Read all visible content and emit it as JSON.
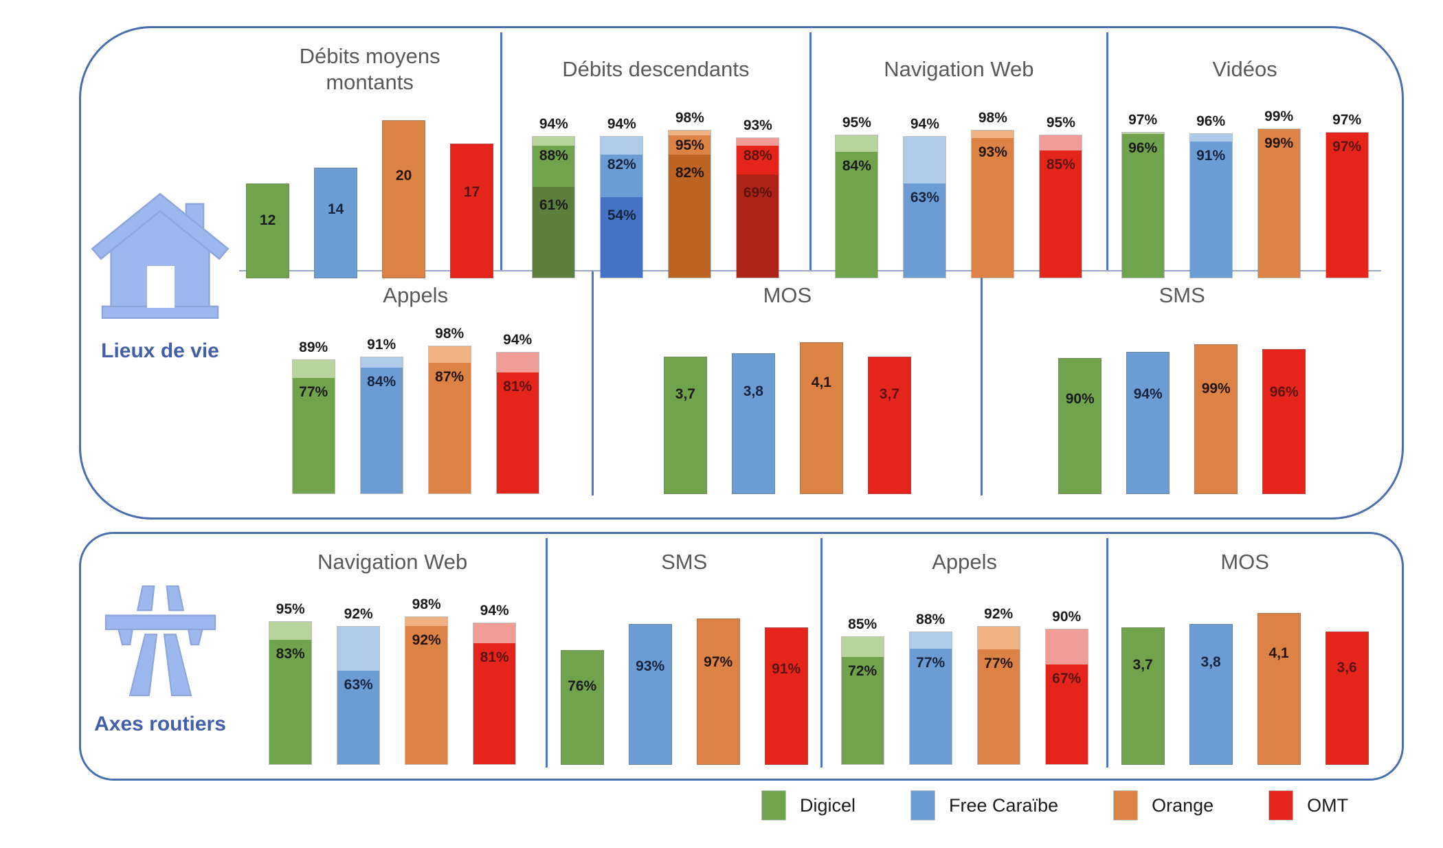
{
  "operators": [
    "Digicel",
    "Free Caraïbe",
    "Orange",
    "OMT"
  ],
  "colors": [
    {
      "operator": "Digicel",
      "main": "#71A24C",
      "light": "#B7D49E",
      "dark": "#5C7F3C",
      "label": "#1b1b1b"
    },
    {
      "operator": "Free Caraïbe",
      "main": "#6C9CD4",
      "light": "#AECBEA",
      "dark": "#4472C4",
      "label": "#16243e"
    },
    {
      "operator": "Orange",
      "main": "#DC8244",
      "light": "#F0B183",
      "dark": "#BE6423",
      "label": "#23150a"
    },
    {
      "operator": "OMT",
      "main": "#E5251B",
      "light": "#F29C97",
      "dark": "#AE2318",
      "label": "#5c1310"
    }
  ],
  "sections": [
    {
      "label": "Lieux de vie"
    },
    {
      "label": "Axes routiers"
    }
  ],
  "legend": {
    "items": [
      "Digicel",
      "Free Caraïbe",
      "Orange",
      "OMT"
    ]
  },
  "chart_data": [
    {
      "id": "ldv-debits-moyens-montants",
      "section": "Lieux de vie",
      "row": "s0r0",
      "type": "bar",
      "scale": "mbps",
      "title": "Débits moyens montants",
      "title_lines": [
        "Débits moyens",
        "montants"
      ],
      "categories": [
        "Digicel",
        "Free Caraïbe",
        "Orange",
        "OMT"
      ],
      "values": [
        12,
        14,
        20,
        17
      ],
      "value_labels": [
        "12",
        "14",
        "20",
        "17"
      ]
    },
    {
      "id": "ldv-debits-descendants",
      "section": "Lieux de vie",
      "row": "s0r0",
      "type": "bar3",
      "scale": "pct",
      "title": "Débits descendants",
      "categories": [
        "Digicel",
        "Free Caraïbe",
        "Orange",
        "OMT"
      ],
      "series": [
        {
          "name": "total",
          "values": [
            94,
            94,
            98,
            93
          ],
          "labels": [
            "94%",
            "94%",
            "98%",
            "93%"
          ]
        },
        {
          "name": "mid",
          "values": [
            88,
            82,
            95,
            88
          ],
          "labels": [
            "88%",
            "82%",
            "95%",
            "88%"
          ]
        },
        {
          "name": "low",
          "values": [
            61,
            54,
            82,
            69
          ],
          "labels": [
            "61%",
            "54%",
            "82%",
            "69%"
          ]
        }
      ]
    },
    {
      "id": "ldv-navigation-web",
      "section": "Lieux de vie",
      "row": "s0r0",
      "type": "bar2",
      "scale": "pct",
      "title": "Navigation Web",
      "categories": [
        "Digicel",
        "Free Caraïbe",
        "Orange",
        "OMT"
      ],
      "series": [
        {
          "name": "total",
          "values": [
            95,
            94,
            98,
            95
          ],
          "labels": [
            "95%",
            "94%",
            "98%",
            "95%"
          ]
        },
        {
          "name": "main",
          "values": [
            84,
            63,
            93,
            85
          ],
          "labels": [
            "84%",
            "63%",
            "93%",
            "85%"
          ]
        }
      ]
    },
    {
      "id": "ldv-videos",
      "section": "Lieux de vie",
      "row": "s0r0",
      "type": "bar2",
      "scale": "pct",
      "title": "Vidéos",
      "categories": [
        "Digicel",
        "Free Caraïbe",
        "Orange",
        "OMT"
      ],
      "series": [
        {
          "name": "total",
          "values": [
            97,
            96,
            99,
            97
          ],
          "labels": [
            "97%",
            "96%",
            "99%",
            "97%"
          ]
        },
        {
          "name": "main",
          "values": [
            96,
            91,
            99,
            97
          ],
          "labels": [
            "96%",
            "91%",
            "99%",
            "97%"
          ]
        }
      ]
    },
    {
      "id": "ldv-appels",
      "section": "Lieux de vie",
      "row": "s0r1",
      "type": "bar2",
      "scale": "pct",
      "title": "Appels",
      "categories": [
        "Digicel",
        "Free Caraïbe",
        "Orange",
        "OMT"
      ],
      "series": [
        {
          "name": "total",
          "values": [
            89,
            91,
            98,
            94
          ],
          "labels": [
            "89%",
            "91%",
            "98%",
            "94%"
          ]
        },
        {
          "name": "main",
          "values": [
            77,
            84,
            87,
            81
          ],
          "labels": [
            "77%",
            "84%",
            "87%",
            "81%"
          ]
        }
      ]
    },
    {
      "id": "ldv-mos",
      "section": "Lieux de vie",
      "row": "s0r1",
      "type": "bar",
      "scale": "mos",
      "title": "MOS",
      "categories": [
        "Digicel",
        "Free Caraïbe",
        "Orange",
        "OMT"
      ],
      "values": [
        3.7,
        3.8,
        4.1,
        3.7
      ],
      "value_labels": [
        "3,7",
        "3,8",
        "4,1",
        "3,7"
      ]
    },
    {
      "id": "ldv-sms",
      "section": "Lieux de vie",
      "row": "s0r1",
      "type": "bar",
      "scale": "pct",
      "title": "SMS",
      "categories": [
        "Digicel",
        "Free Caraïbe",
        "Orange",
        "OMT"
      ],
      "values": [
        90,
        94,
        99,
        96
      ],
      "value_labels": [
        "90%",
        "94%",
        "99%",
        "96%"
      ]
    },
    {
      "id": "ar-navigation-web",
      "section": "Axes routiers",
      "row": "s1r0",
      "type": "bar2",
      "scale": "pct",
      "title": "Navigation Web",
      "categories": [
        "Digicel",
        "Free Caraïbe",
        "Orange",
        "OMT"
      ],
      "series": [
        {
          "name": "total",
          "values": [
            95,
            92,
            98,
            94
          ],
          "labels": [
            "95%",
            "92%",
            "98%",
            "94%"
          ]
        },
        {
          "name": "main",
          "values": [
            83,
            63,
            92,
            81
          ],
          "labels": [
            "83%",
            "63%",
            "92%",
            "81%"
          ]
        }
      ]
    },
    {
      "id": "ar-sms",
      "section": "Axes routiers",
      "row": "s1r0",
      "type": "bar",
      "scale": "pct",
      "title": "SMS",
      "categories": [
        "Digicel",
        "Free Caraïbe",
        "Orange",
        "OMT"
      ],
      "values": [
        76,
        93,
        97,
        91
      ],
      "value_labels": [
        "76%",
        "93%",
        "97%",
        "91%"
      ]
    },
    {
      "id": "ar-appels",
      "section": "Axes routiers",
      "row": "s1r0",
      "type": "bar2",
      "scale": "pct",
      "title": "Appels",
      "categories": [
        "Digicel",
        "Free Caraïbe",
        "Orange",
        "OMT"
      ],
      "series": [
        {
          "name": "total",
          "values": [
            85,
            88,
            92,
            90
          ],
          "labels": [
            "85%",
            "88%",
            "92%",
            "90%"
          ]
        },
        {
          "name": "main",
          "values": [
            72,
            77,
            77,
            67
          ],
          "labels": [
            "72%",
            "77%",
            "77%",
            "67%"
          ]
        }
      ]
    },
    {
      "id": "ar-mos",
      "section": "Axes routiers",
      "row": "s1r0",
      "type": "bar",
      "scale": "mos",
      "title": "MOS",
      "categories": [
        "Digicel",
        "Free Caraïbe",
        "Orange",
        "OMT"
      ],
      "values": [
        3.7,
        3.8,
        4.1,
        3.6
      ],
      "value_labels": [
        "3,7",
        "3,8",
        "4,1",
        "3,6"
      ]
    }
  ]
}
